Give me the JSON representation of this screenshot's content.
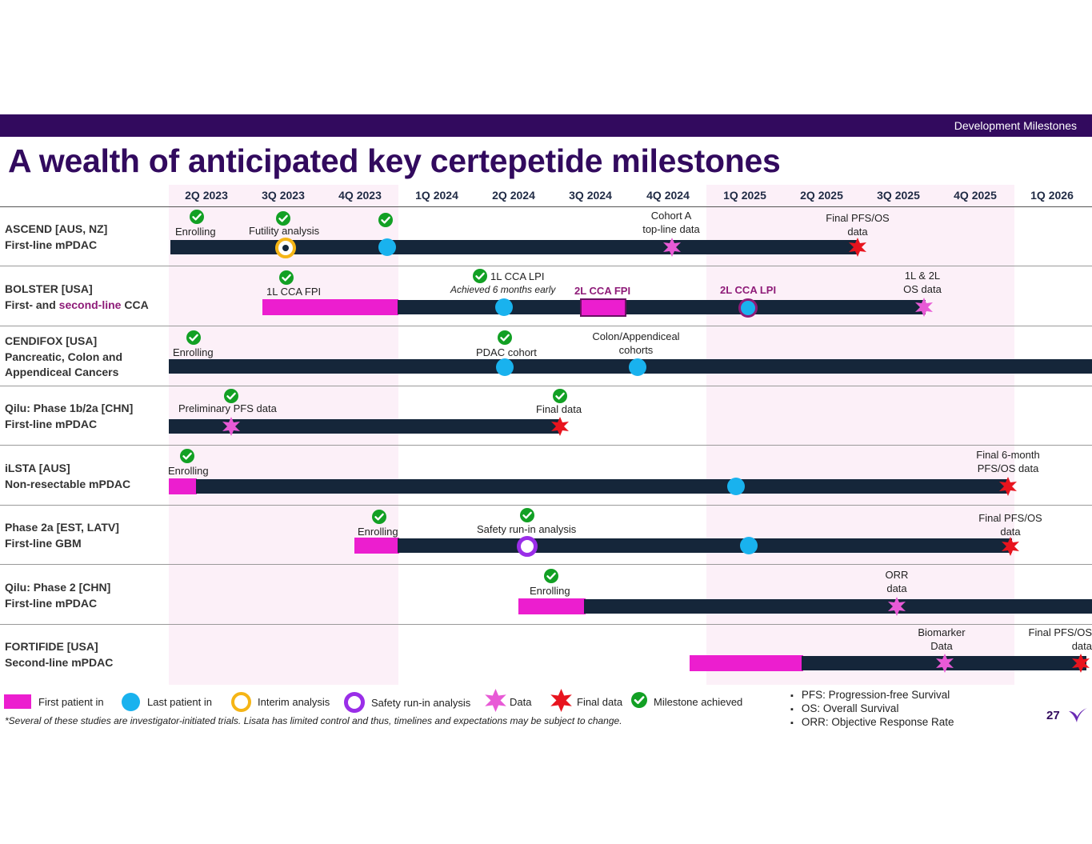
{
  "header": {
    "section_label": "Development Milestones"
  },
  "title": "A wealth of anticipated key certepetide milestones",
  "quarters": [
    "2Q 2023",
    "3Q 2023",
    "4Q 2023",
    "1Q 2024",
    "2Q 2024",
    "3Q 2024",
    "4Q 2024",
    "1Q 2025",
    "2Q 2025",
    "3Q 2025",
    "4Q 2025",
    "1Q 2026"
  ],
  "rows": [
    {
      "name": "ASCEND [AUS, NZ]",
      "sub": "First-line mPDAC"
    },
    {
      "name": "BOLSTER [USA]",
      "sub_pre": "First- and ",
      "sub_hl": "second-line",
      "sub_post": " CCA"
    },
    {
      "name": "CENDIFOX [USA]",
      "sub": "Pancreatic, Colon and",
      "sub2": "Appendiceal Cancers"
    },
    {
      "name": "Qilu: Phase 1b/2a [CHN]",
      "sub": "First-line mPDAC"
    },
    {
      "name": "iLSTA [AUS]",
      "sub": "Non-resectable mPDAC"
    },
    {
      "name": "Phase 2a [EST, LATV]",
      "sub": "First-line GBM"
    },
    {
      "name": "Qilu: Phase 2 [CHN]",
      "sub": "First-line mPDAC"
    },
    {
      "name": "FORTIFIDE [USA]",
      "sub": "Second-line mPDAC"
    }
  ],
  "annotations": {
    "ascend_enrolling": "Enrolling",
    "ascend_futility": "Futility analysis",
    "ascend_cohort_a_1": "Cohort A",
    "ascend_cohort_a_2": "top-line data",
    "ascend_final_1": "Final PFS/OS",
    "ascend_final_2": "data",
    "bolster_fpi": "1L CCA FPI",
    "bolster_lpi": "1L CCA LPI",
    "bolster_early": "Achieved 6 months early",
    "bolster_2l_fpi": "2L CCA FPI",
    "bolster_2l_lpi": "2L CCA LPI",
    "bolster_os_1": "1L & 2L",
    "bolster_os_2": "OS data",
    "cendifox_enrolling": "Enrolling",
    "cendifox_pdac": "PDAC cohort",
    "cendifox_colon_1": "Colon/Appendiceal",
    "cendifox_colon_2": "cohorts",
    "qilu1_prelim": "Preliminary PFS data",
    "qilu1_final": "Final data",
    "ilsta_enrolling": "Enrolling",
    "ilsta_final_1": "Final 6-month",
    "ilsta_final_2": "PFS/OS data",
    "p2a_enrolling": "Enrolling",
    "p2a_safety": "Safety run-in analysis",
    "p2a_final_1": "Final PFS/OS",
    "p2a_final_2": "data",
    "qilu2_enrolling": "Enrolling",
    "qilu2_orr_1": "ORR",
    "qilu2_orr_2": "data",
    "fort_bio_1": "Biomarker",
    "fort_bio_2": "Data",
    "fort_final_1": "Final PFS/OS",
    "fort_final_2": "data"
  },
  "legend": {
    "first_patient_in": "First patient in",
    "last_patient_in": "Last patient in",
    "interim_analysis": "Interim analysis",
    "safety_run_in": "Safety run-in analysis",
    "data": "Data",
    "final_data": "Final data",
    "milestone_achieved": "Milestone achieved"
  },
  "footnote": "*Several of these studies are investigator-initiated trials. Lisata has limited control and thus, timelines and expectations may be subject to change.",
  "abbreviations": [
    "PFS: Progression-free Survival",
    "OS: Overall Survival",
    "ORR: Objective Response Rate"
  ],
  "page_number": "27",
  "colors": {
    "brand_purple": "#320a5e",
    "track": "#15263a",
    "first_patient_in": "#ec1ecf",
    "last_patient_in": "#19b2ee",
    "interim_analysis": "#f5b516",
    "safety_run_in": "#9a2ee8",
    "data_star": "#e85ad6",
    "final_star": "#e8141e",
    "milestone_check": "#12a024",
    "highlight_band": "#fcf0f8"
  },
  "chart_data": {
    "type": "gantt",
    "quarters": [
      "2Q 2023",
      "3Q 2023",
      "4Q 2023",
      "1Q 2024",
      "2Q 2024",
      "3Q 2024",
      "4Q 2024",
      "1Q 2025",
      "2Q 2025",
      "3Q 2025",
      "4Q 2025",
      "1Q 2026"
    ],
    "highlighted_quarters": [
      "2Q 2023",
      "3Q 2023",
      "4Q 2023",
      "1Q 2025",
      "2Q 2025",
      "3Q 2025",
      "4Q 2025"
    ],
    "legend": [
      "First patient in",
      "Last patient in",
      "Interim analysis",
      "Safety run-in analysis",
      "Data",
      "Final data",
      "Milestone achieved"
    ],
    "trials": [
      {
        "trial": "ASCEND [AUS, NZ]",
        "indication": "First-line mPDAC",
        "milestones": [
          {
            "label": "Enrolling",
            "type": "achieved",
            "quarter": "2Q 2023"
          },
          {
            "label": "Futility analysis",
            "type": "interim_analysis",
            "quarter": "3Q 2023",
            "achieved": true
          },
          {
            "label": "",
            "type": "last_patient_in",
            "quarter": "4Q 2023",
            "achieved": true
          },
          {
            "label": "Cohort A top-line data",
            "type": "data",
            "quarter": "4Q 2024"
          },
          {
            "label": "Final PFS/OS data",
            "type": "final_data",
            "quarter": "3Q 2025"
          }
        ]
      },
      {
        "trial": "BOLSTER [USA]",
        "indication": "First- and second-line CCA",
        "milestones": [
          {
            "label": "1L CCA FPI",
            "type": "first_patient_in",
            "quarter": "3Q 2023",
            "achieved": true
          },
          {
            "label": "1L CCA LPI",
            "type": "last_patient_in",
            "quarter": "2Q 2024",
            "achieved": true,
            "note": "Achieved 6 months early"
          },
          {
            "label": "2L CCA FPI",
            "type": "first_patient_in",
            "quarter": "3Q 2024"
          },
          {
            "label": "2L CCA LPI",
            "type": "last_patient_in",
            "quarter": "1Q 2025"
          },
          {
            "label": "1L & 2L OS data",
            "type": "data",
            "quarter": "3Q 2025"
          }
        ]
      },
      {
        "trial": "CENDIFOX [USA]",
        "indication": "Pancreatic, Colon and Appendiceal Cancers",
        "milestones": [
          {
            "label": "Enrolling",
            "type": "achieved",
            "quarter": "2Q 2023"
          },
          {
            "label": "PDAC cohort",
            "type": "last_patient_in",
            "quarter": "2Q 2024",
            "achieved": true
          },
          {
            "label": "Colon/Appendiceal cohorts",
            "type": "last_patient_in",
            "quarter": "4Q 2024"
          }
        ]
      },
      {
        "trial": "Qilu: Phase 1b/2a [CHN]",
        "indication": "First-line mPDAC",
        "milestones": [
          {
            "label": "Preliminary PFS data",
            "type": "data",
            "quarter": "2Q 2023",
            "achieved": true
          },
          {
            "label": "Final data",
            "type": "final_data",
            "quarter": "2Q 2024",
            "achieved": true
          }
        ]
      },
      {
        "trial": "iLSTA [AUS]",
        "indication": "Non-resectable mPDAC",
        "milestones": [
          {
            "label": "Enrolling",
            "type": "first_patient_in",
            "quarter": "2Q 2023",
            "achieved": true
          },
          {
            "label": "",
            "type": "last_patient_in",
            "quarter": "4Q 2024"
          },
          {
            "label": "Final 6-month PFS/OS data",
            "type": "final_data",
            "quarter": "4Q 2025"
          }
        ]
      },
      {
        "trial": "Phase 2a [EST, LATV]",
        "indication": "First-line GBM",
        "milestones": [
          {
            "label": "Enrolling",
            "type": "first_patient_in",
            "quarter": "4Q 2023",
            "achieved": true
          },
          {
            "label": "Safety run-in analysis",
            "type": "safety_run_in",
            "quarter": "2Q 2024",
            "achieved": true
          },
          {
            "label": "",
            "type": "last_patient_in",
            "quarter": "1Q 2025"
          },
          {
            "label": "Final PFS/OS data",
            "type": "final_data",
            "quarter": "4Q 2025"
          }
        ]
      },
      {
        "trial": "Qilu: Phase 2 [CHN]",
        "indication": "First-line mPDAC",
        "milestones": [
          {
            "label": "Enrolling",
            "type": "first_patient_in",
            "quarter": "2Q 2024",
            "achieved": true
          },
          {
            "label": "ORR data",
            "type": "data",
            "quarter": "3Q 2025"
          }
        ]
      },
      {
        "trial": "FORTIFIDE [USA]",
        "indication": "Second-line mPDAC",
        "milestones": [
          {
            "label": "",
            "type": "first_patient_in",
            "quarter": "1Q 2025"
          },
          {
            "label": "Biomarker Data",
            "type": "data",
            "quarter": "3Q 2025"
          },
          {
            "label": "Final PFS/OS data",
            "type": "final_data",
            "quarter": "1Q 2026"
          }
        ]
      }
    ]
  }
}
